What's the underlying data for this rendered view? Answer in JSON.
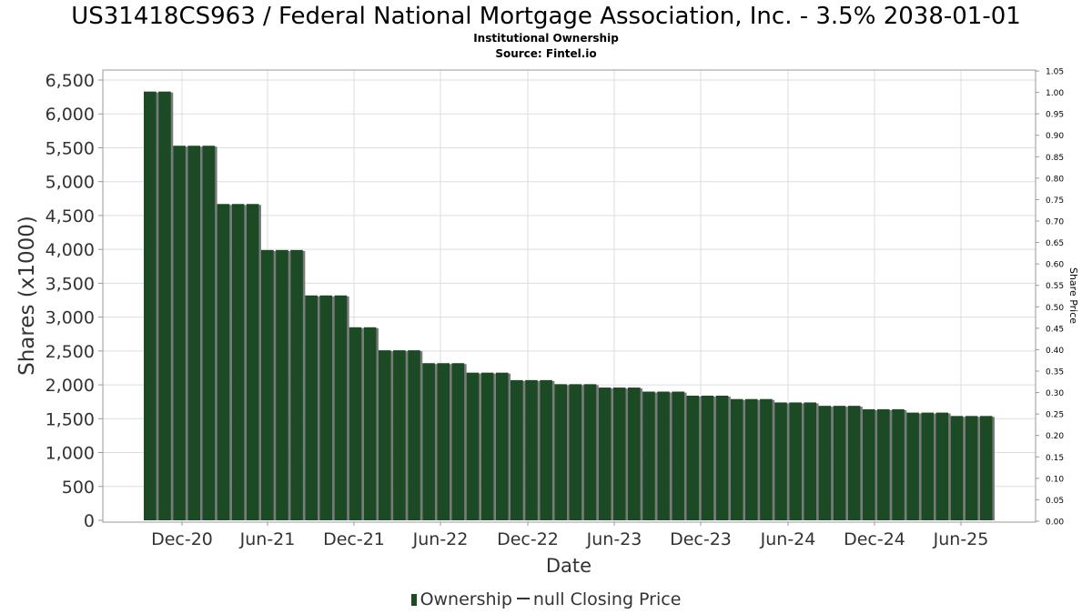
{
  "header": {
    "title": "US31418CS963 / Federal National Mortgage Association, Inc. - 3.5% 2038-01-01",
    "subtitle": "Institutional Ownership",
    "source": "Source: Fintel.io"
  },
  "legend": {
    "ownership": "Ownership",
    "price": "null Closing Price"
  },
  "colors": {
    "bar": "#1b4a25",
    "bar_shadow": "#7a7a7a",
    "grid": "#dddddd",
    "frame": "#999999"
  },
  "chart_data": {
    "type": "bar",
    "title": "US31418CS963 / Federal National Mortgage Association, Inc. - 3.5% 2038-01-01",
    "subtitle": "Institutional Ownership",
    "xlabel": "Date",
    "ylabel": "Shares (x1000)",
    "y2label": "Share Price",
    "ylim": [
      0,
      6500
    ],
    "y2lim": [
      0,
      1.05
    ],
    "yticks": [
      "0",
      "500",
      "1,000",
      "1,500",
      "2,000",
      "2,500",
      "3,000",
      "3,500",
      "4,000",
      "4,500",
      "5,000",
      "5,500",
      "6,000",
      "6,500"
    ],
    "y2ticks": [
      "0.00",
      "0.05",
      "0.10",
      "0.15",
      "0.20",
      "0.25",
      "0.30",
      "0.35",
      "0.40",
      "0.45",
      "0.50",
      "0.55",
      "0.60",
      "0.65",
      "0.70",
      "0.75",
      "0.80",
      "0.85",
      "0.90",
      "0.95",
      "1.00",
      "1.05"
    ],
    "xticks": [
      "Dec-20",
      "Jun-21",
      "Dec-21",
      "Jun-22",
      "Dec-22",
      "Jun-23",
      "Dec-23",
      "Jun-24",
      "Dec-24",
      "Jun-25"
    ],
    "grid": true,
    "legend_position": "bottom",
    "series": [
      {
        "name": "Ownership",
        "values": [
          6330,
          6330,
          5530,
          5530,
          5530,
          4670,
          4670,
          4670,
          3990,
          3990,
          3990,
          3320,
          3320,
          3320,
          2850,
          2850,
          2510,
          2510,
          2510,
          2320,
          2320,
          2320,
          2180,
          2180,
          2180,
          2070,
          2070,
          2070,
          2010,
          2010,
          2010,
          1960,
          1960,
          1960,
          1900,
          1900,
          1900,
          1840,
          1840,
          1840,
          1790,
          1790,
          1790,
          1740,
          1740,
          1740,
          1690,
          1690,
          1690,
          1640,
          1640,
          1640,
          1590,
          1590,
          1590,
          1540,
          1540,
          1540
        ]
      },
      {
        "name": "null Closing Price",
        "values": []
      }
    ]
  }
}
